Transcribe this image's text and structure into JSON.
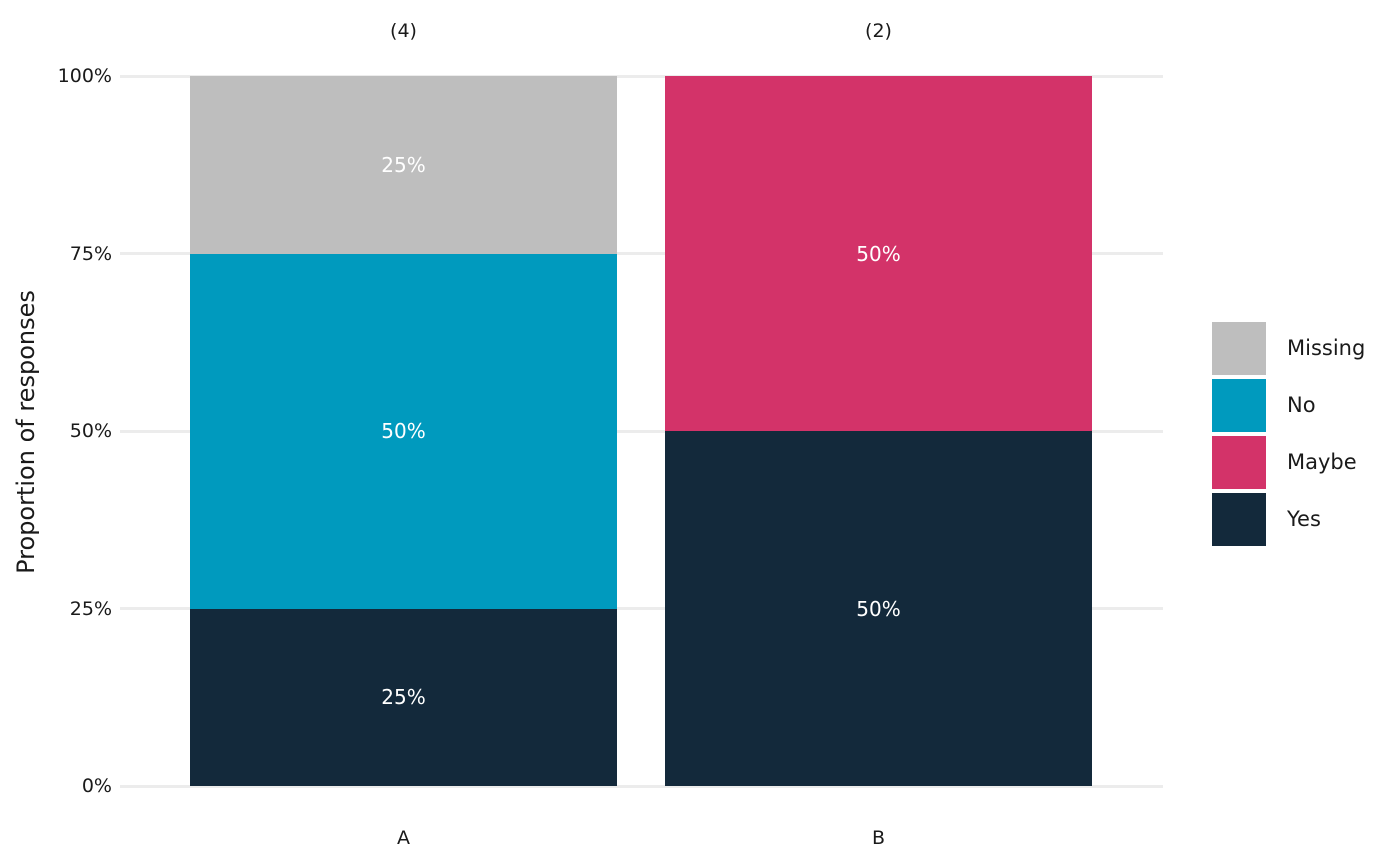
{
  "chart_data": {
    "type": "bar",
    "stacked": true,
    "orientation": "vertical",
    "title": "",
    "xlabel": "",
    "ylabel": "Proportion of responses",
    "categories": [
      "A",
      "B"
    ],
    "count_labels": [
      "(4)",
      "(2)"
    ],
    "series": [
      {
        "name": "Missing",
        "color": "#BEBEBE",
        "values": [
          25,
          0
        ]
      },
      {
        "name": "No",
        "color": "#009ABE",
        "values": [
          50,
          0
        ]
      },
      {
        "name": "Maybe",
        "color": "#D33369",
        "values": [
          0,
          50
        ]
      },
      {
        "name": "Yes",
        "color": "#13293B",
        "values": [
          25,
          50
        ]
      }
    ],
    "stack_order_bottom_to_top": [
      "Yes",
      "No",
      "Maybe",
      "Missing"
    ],
    "segment_labels": {
      "A": [
        "25%",
        "50%",
        "25%"
      ],
      "B": [
        "50%",
        "50%"
      ]
    },
    "segment_label_color": "#FFFFFF",
    "ylim": [
      0,
      100
    ],
    "ytick_values": [
      0,
      25,
      50,
      75,
      100
    ],
    "ytick_labels": [
      "0%",
      "25%",
      "50%",
      "75%",
      "100%"
    ],
    "grid": "horizontal",
    "gridline_color": "#ECECEC",
    "axis_text_color": "#1A1A1A",
    "legend_position": "right",
    "legend_labels": [
      "Missing",
      "No",
      "Maybe",
      "Yes"
    ],
    "background": "#FFFFFF"
  }
}
